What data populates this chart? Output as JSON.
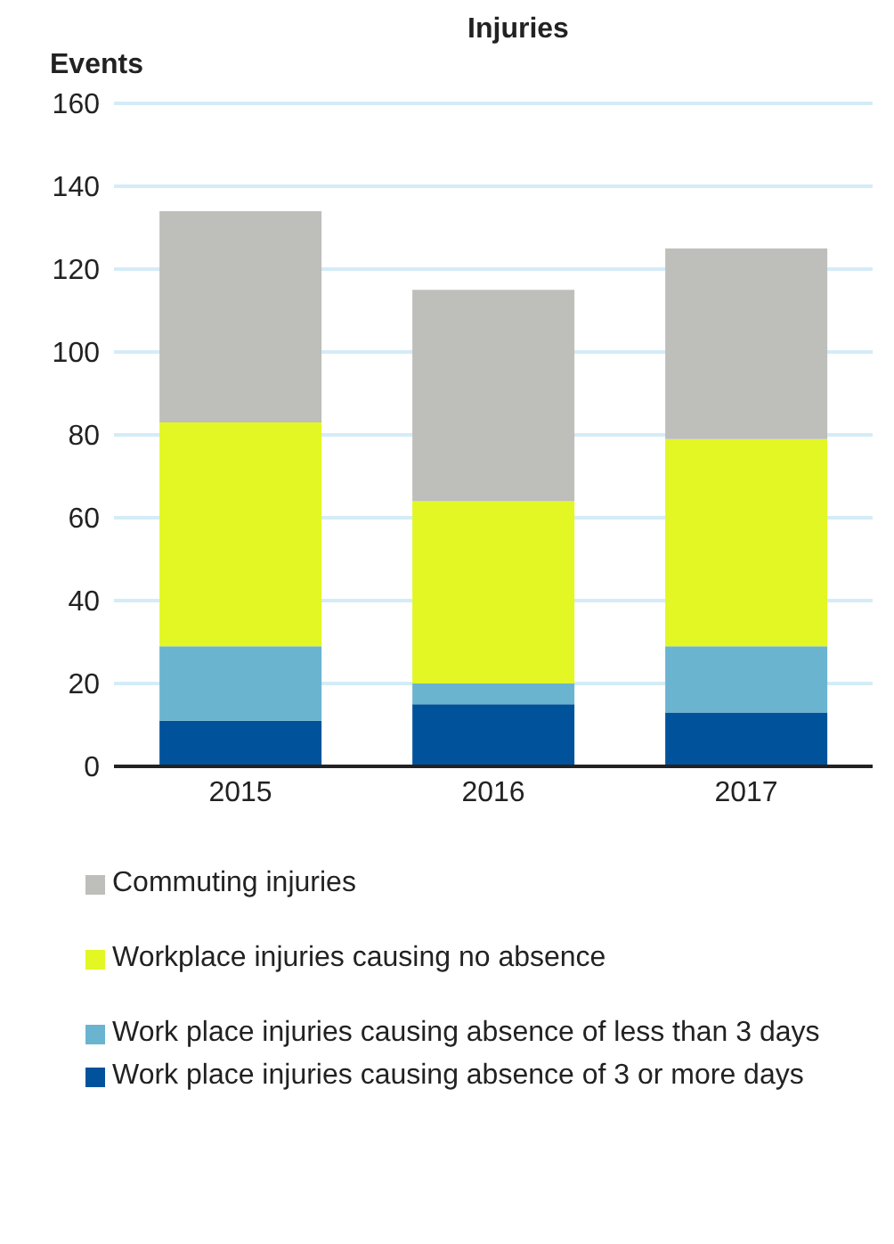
{
  "chart_data": {
    "type": "bar",
    "title": "Injuries",
    "ylabel": "Events",
    "categories": [
      "2015",
      "2016",
      "2017"
    ],
    "series": [
      {
        "name": "Work place injuries causing absence of 3 or more days",
        "color": "#00539b",
        "values": [
          11,
          15,
          13
        ]
      },
      {
        "name": "Work place injuries causing absence of less than 3 days",
        "color": "#6ab4d0",
        "values": [
          18,
          5,
          16
        ]
      },
      {
        "name": "Workplace injuries causing no absence",
        "color": "#e2f723",
        "values": [
          54,
          44,
          50
        ]
      },
      {
        "name": "Commuting injuries",
        "color": "#bebebb",
        "values": [
          51,
          51,
          46
        ]
      }
    ],
    "stacked": true,
    "ylim": [
      0,
      160
    ],
    "yticks": [
      0,
      20,
      40,
      60,
      80,
      100,
      120,
      140,
      160
    ],
    "grid": "y",
    "legend": "bottom"
  }
}
